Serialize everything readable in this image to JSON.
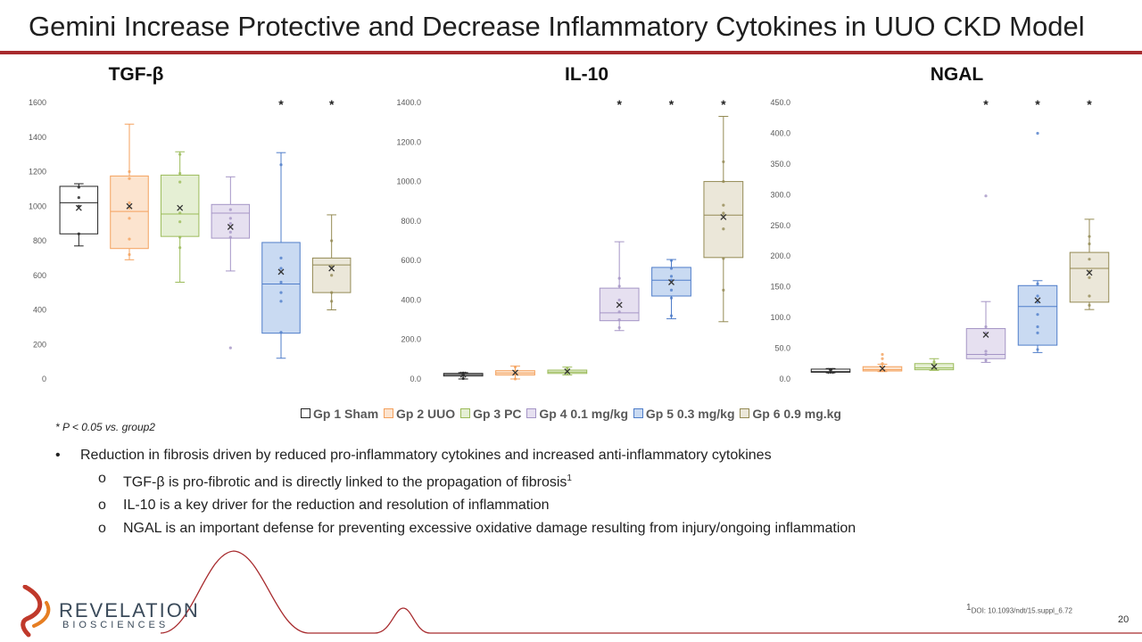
{
  "slide": {
    "title": "Gemini Increase Protective and Decrease Inflammatory Cytokines in UUO CKD Model",
    "footnote": "* P < 0.05 vs. group2",
    "bullet_main": "Reduction in fibrosis driven by reduced pro-inflammatory cytokines and increased anti-inflammatory cytokines",
    "sub_bullets": [
      "TGF-β is pro-fibrotic and is directly linked to the propagation of fibrosis",
      "IL-10 is a key driver for the reduction and resolution of inflammation",
      "NGAL is an important defense for preventing excessive oxidative damage resulting from injury/ongoing inflammation"
    ],
    "sub_bullet_1_sup": "1",
    "bullet_glyph": "•",
    "sub_glyph": "o",
    "doi_sup": "1",
    "doi": "DOI: 10.1093/ndt/15.suppl_6.72",
    "page_number": "20",
    "logo_line1": "REVELATION",
    "logo_line2": "BIOSCIENCES"
  },
  "legend": [
    {
      "label": "Gp 1 Sham",
      "color": "#222222",
      "fill": "#ffffff"
    },
    {
      "label": "Gp 2 UUO",
      "color": "#f4a15d",
      "fill": "#fce4cf"
    },
    {
      "label": "Gp 3 PC",
      "color": "#9bbb59",
      "fill": "#e5efd4"
    },
    {
      "label": "Gp 4 0.1 mg/kg",
      "color": "#a595c6",
      "fill": "#e6e0f0"
    },
    {
      "label": "Gp 5 0.3 mg/kg",
      "color": "#4f7dc9",
      "fill": "#c9daf2"
    },
    {
      "label": "Gp 6 0.9 mg.kg",
      "color": "#948a54",
      "fill": "#ebe7d9"
    }
  ],
  "chart_data": [
    {
      "type": "box",
      "title": "TGF-β",
      "ylim": [
        0,
        1600
      ],
      "yticks": [
        0,
        200,
        400,
        600,
        800,
        1000,
        1200,
        1400,
        1600
      ],
      "tick_labels": [
        "0",
        "200",
        "400",
        "600",
        "800",
        "1000",
        "1200",
        "1400",
        "1600"
      ],
      "significance": [
        "",
        "",
        "",
        "",
        "*",
        "*"
      ],
      "groups": [
        {
          "min": 770,
          "q1": 840,
          "median": 1020,
          "q3": 1115,
          "max": 1130,
          "mean": 990,
          "points": [
            840,
            1000,
            1050,
            1110
          ]
        },
        {
          "min": 690,
          "q1": 755,
          "median": 970,
          "q3": 1175,
          "max": 1475,
          "mean": 1000,
          "points": [
            720,
            810,
            930,
            990,
            1020,
            1160,
            1200
          ]
        },
        {
          "min": 560,
          "q1": 825,
          "median": 955,
          "q3": 1180,
          "max": 1315,
          "mean": 990,
          "points": [
            760,
            820,
            910,
            960,
            1140,
            1190,
            1300
          ]
        },
        {
          "min": 625,
          "q1": 815,
          "median": 960,
          "q3": 1010,
          "max": 1170,
          "mean": 880,
          "points": [
            180,
            820,
            850,
            900,
            930,
            980
          ]
        },
        {
          "min": 120,
          "q1": 265,
          "median": 550,
          "q3": 790,
          "max": 1310,
          "mean": 620,
          "points": [
            270,
            450,
            500,
            560,
            640,
            700,
            1240
          ]
        },
        {
          "min": 400,
          "q1": 500,
          "median": 660,
          "q3": 700,
          "max": 950,
          "mean": 640,
          "points": [
            450,
            500,
            600,
            650,
            800
          ]
        }
      ]
    },
    {
      "type": "box",
      "title": "IL-10",
      "ylim": [
        0,
        1400
      ],
      "yticks": [
        0,
        200,
        400,
        600,
        800,
        1000,
        1200,
        1400
      ],
      "tick_labels": [
        "0.0",
        "200.0",
        "400.0",
        "600.0",
        "800.0",
        "1000.0",
        "1200.0",
        "1400.0"
      ],
      "significance": [
        "",
        "",
        "",
        "*",
        "*",
        "*"
      ],
      "groups": [
        {
          "min": 0,
          "q1": 15,
          "median": 22,
          "q3": 28,
          "max": 32,
          "mean": 22,
          "points": [
            2,
            20,
            30
          ]
        },
        {
          "min": 0,
          "q1": 20,
          "median": 30,
          "q3": 42,
          "max": 65,
          "mean": 32,
          "points": [
            0,
            25,
            40,
            60
          ]
        },
        {
          "min": 20,
          "q1": 28,
          "median": 35,
          "q3": 45,
          "max": 60,
          "mean": 38,
          "points": [
            30,
            40,
            55
          ]
        },
        {
          "min": 245,
          "q1": 295,
          "median": 335,
          "q3": 460,
          "max": 695,
          "mean": 375,
          "points": [
            260,
            300,
            340,
            400,
            470,
            510
          ]
        },
        {
          "min": 305,
          "q1": 420,
          "median": 500,
          "q3": 565,
          "max": 605,
          "mean": 490,
          "points": [
            320,
            410,
            450,
            500,
            520,
            560,
            600
          ]
        },
        {
          "min": 290,
          "q1": 615,
          "median": 830,
          "q3": 1000,
          "max": 1330,
          "mean": 820,
          "points": [
            450,
            610,
            760,
            840,
            880,
            1000,
            1100
          ]
        }
      ]
    },
    {
      "type": "box",
      "title": "NGAL",
      "ylim": [
        0,
        450
      ],
      "yticks": [
        0,
        50,
        100,
        150,
        200,
        250,
        300,
        350,
        400,
        450
      ],
      "tick_labels": [
        "0.0",
        "50.0",
        "100.0",
        "150.0",
        "200.0",
        "250.0",
        "300.0",
        "350.0",
        "400.0",
        "450.0"
      ],
      "significance": [
        "",
        "",
        "",
        "*",
        "*",
        "*"
      ],
      "groups": [
        {
          "min": 10,
          "q1": 11,
          "median": 12,
          "q3": 16,
          "max": 17,
          "mean": 13,
          "points": [
            11,
            14
          ]
        },
        {
          "min": 12,
          "q1": 13,
          "median": 15,
          "q3": 20,
          "max": 24,
          "mean": 17,
          "points": [
            14,
            20,
            25,
            33,
            40
          ]
        },
        {
          "min": 14,
          "q1": 15,
          "median": 18,
          "q3": 25,
          "max": 33,
          "mean": 20,
          "points": [
            17,
            22,
            28
          ]
        },
        {
          "min": 27,
          "q1": 33,
          "median": 40,
          "q3": 82,
          "max": 126,
          "mean": 72,
          "points": [
            30,
            40,
            45,
            75,
            85,
            298
          ]
        },
        {
          "min": 43,
          "q1": 55,
          "median": 118,
          "q3": 152,
          "max": 160,
          "mean": 128,
          "points": [
            48,
            75,
            85,
            105,
            125,
            135,
            155,
            400
          ]
        },
        {
          "min": 113,
          "q1": 125,
          "median": 180,
          "q3": 206,
          "max": 260,
          "mean": 173,
          "points": [
            120,
            135,
            165,
            175,
            195,
            220,
            232
          ]
        }
      ]
    }
  ]
}
